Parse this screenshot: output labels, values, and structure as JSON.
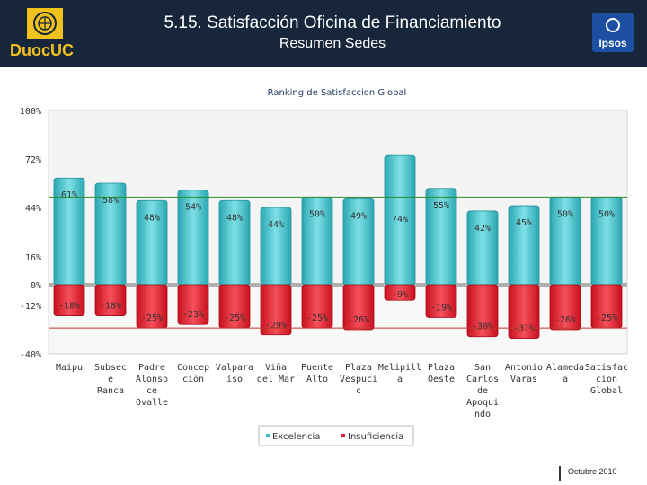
{
  "header": {
    "title": "5.15. Satisfacción Oficina de Financiamiento",
    "subtitle": "Resumen Sedes",
    "logo_left_text": "DuocUC",
    "logo_right_text": "Ipsos",
    "background_color": "#17263a"
  },
  "footer": {
    "date": "Octubre 2010"
  },
  "chart_data": {
    "type": "bar",
    "title": "Ranking de Satisfaccion Global",
    "xlabel": "",
    "ylabel": "",
    "ylim": [
      -40,
      100
    ],
    "y_ticks": [
      {
        "value": 100,
        "label": "100%"
      },
      {
        "value": 72,
        "label": "72%"
      },
      {
        "value": 44,
        "label": "44%"
      },
      {
        "value": 16,
        "label": "16%"
      },
      {
        "value": 0,
        "label": "0%"
      },
      {
        "value": -12,
        "label": "-12%"
      },
      {
        "value": -40,
        "label": "-40%"
      }
    ],
    "categories": [
      [
        "Maipu"
      ],
      [
        "Subsec",
        "e",
        "Ranca"
      ],
      [
        "Padre",
        "Alonso",
        "ce",
        "Ovalle"
      ],
      [
        "Concep",
        "ción"
      ],
      [
        "Valpara",
        "íso"
      ],
      [
        "Viña",
        "del Mar"
      ],
      [
        "Puente",
        "Alto"
      ],
      [
        "Plaza",
        "Vespuci",
        "c"
      ],
      [
        "Melipill",
        "a"
      ],
      [
        "Plaza",
        "Oeste"
      ],
      [
        "San",
        "Carlos",
        "de",
        "Apoqui",
        "ndo"
      ],
      [
        "Antonio",
        "Varas"
      ],
      [
        "Alameda",
        "a"
      ],
      [
        "Satisfac",
        "cion",
        "Global"
      ]
    ],
    "series": [
      {
        "name": "Excelencia",
        "color": "#3cbcc6",
        "values": [
          61,
          58,
          48,
          54,
          48,
          44,
          50,
          49,
          74,
          55,
          42,
          45,
          50,
          50
        ],
        "labels": [
          "61%",
          "58%",
          "48%",
          "54%",
          "48%",
          "44%",
          "50%",
          "49%",
          "74%",
          "55%",
          "42%",
          "45%",
          "50%",
          "50%"
        ]
      },
      {
        "name": "Insuficiencia",
        "color": "#e11d2b",
        "values": [
          -18,
          -18,
          -25,
          -23,
          -25,
          -29,
          -25,
          -26,
          -9,
          -19,
          -30,
          -31,
          -26,
          -25
        ],
        "labels": [
          "-18%",
          "-18%",
          "-25%",
          "-23%",
          "-25%",
          "-29%",
          "-25%",
          "-26%",
          "-9%",
          "-19%",
          "-30%",
          "-31%",
          "-26%",
          "-25%"
        ]
      }
    ],
    "reference_lines": [
      {
        "value": 50,
        "color": "#2e8b2e"
      },
      {
        "value": -25,
        "color": "#c0392b"
      }
    ],
    "legend_position": "bottom",
    "grid": false
  }
}
